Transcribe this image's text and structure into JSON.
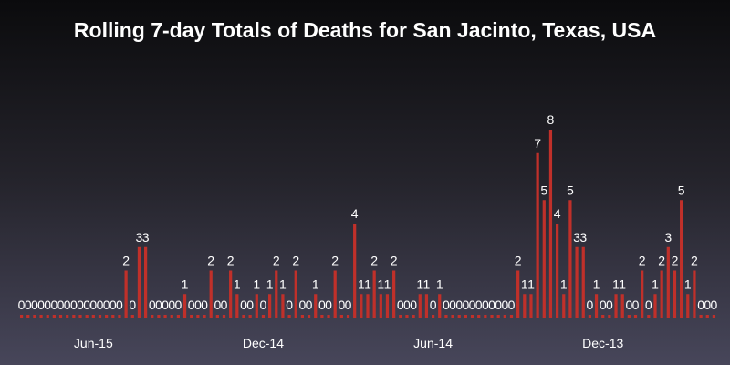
{
  "chart_data": {
    "type": "bar",
    "title": "Rolling 7-day Totals of Deaths for San Jacinto, Texas, USA",
    "xlabel": "",
    "ylabel": "",
    "ylim": [
      0,
      8.4
    ],
    "grid": false,
    "legend": "none",
    "bar_color": "#c0302a",
    "values": [
      0,
      0,
      0,
      0,
      0,
      0,
      0,
      0,
      0,
      0,
      0,
      0,
      0,
      0,
      0,
      0,
      2,
      0,
      3,
      3,
      0,
      0,
      0,
      0,
      0,
      1,
      0,
      0,
      0,
      2,
      0,
      0,
      2,
      1,
      0,
      0,
      1,
      0,
      1,
      2,
      1,
      0,
      2,
      0,
      0,
      1,
      0,
      0,
      2,
      0,
      0,
      4,
      1,
      1,
      2,
      1,
      1,
      2,
      0,
      0,
      0,
      1,
      1,
      0,
      1,
      0,
      0,
      0,
      0,
      0,
      0,
      0,
      0,
      0,
      0,
      0,
      2,
      1,
      1,
      7,
      5,
      8,
      4,
      1,
      5,
      3,
      3,
      0,
      1,
      0,
      0,
      1,
      1,
      0,
      0,
      2,
      0,
      1,
      2,
      3,
      2,
      5,
      1,
      2,
      0,
      0,
      0
    ],
    "x_ticks": [
      {
        "label": "Jun-15",
        "index": 11
      },
      {
        "label": "Dec-14",
        "index": 37
      },
      {
        "label": "Jun-14",
        "index": 63
      },
      {
        "label": "Dec-13",
        "index": 89
      }
    ]
  }
}
